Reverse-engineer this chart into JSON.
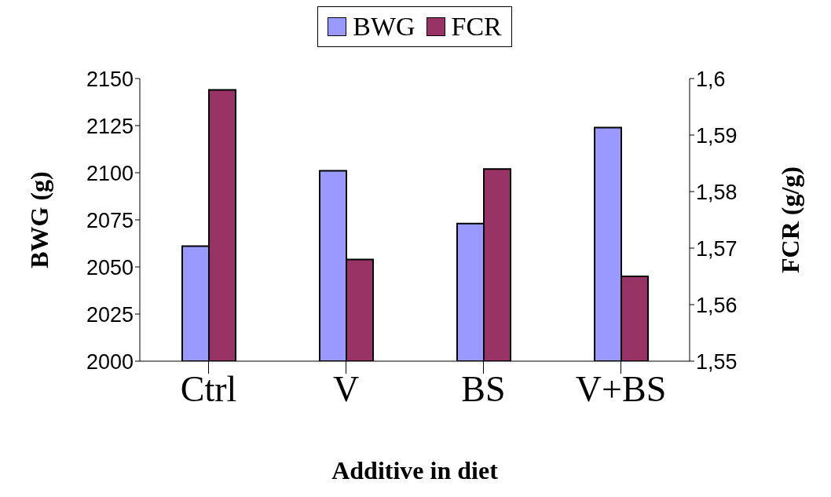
{
  "chart_data": {
    "type": "bar",
    "xlabel": "Additive in diet",
    "ylabel": "BWG (g)",
    "y2label": "FCR (g/g)",
    "categories": [
      "Ctrl",
      "V",
      "BS",
      "V+BS"
    ],
    "series": [
      {
        "name": "BWG",
        "color": "#9999ff",
        "values": [
          2061,
          2101,
          2073,
          2124
        ]
      },
      {
        "name": "FCR",
        "color": "#993366",
        "values": [
          1.598,
          1.568,
          1.584,
          1.565
        ],
        "axis": "y2"
      }
    ],
    "ylim": [
      2000,
      2150
    ],
    "yticks": [
      2000,
      2025,
      2050,
      2075,
      2100,
      2125,
      2150
    ],
    "y2lim": [
      1.55,
      1.6
    ],
    "y2ticks": [
      {
        "value": 1.55,
        "label": "1,55"
      },
      {
        "value": 1.56,
        "label": "1,56"
      },
      {
        "value": 1.57,
        "label": "1,57"
      },
      {
        "value": 1.58,
        "label": "1,58"
      },
      {
        "value": 1.59,
        "label": "1,59"
      },
      {
        "value": 1.6,
        "label": "1,6"
      }
    ],
    "grid": false,
    "legend": "top"
  }
}
